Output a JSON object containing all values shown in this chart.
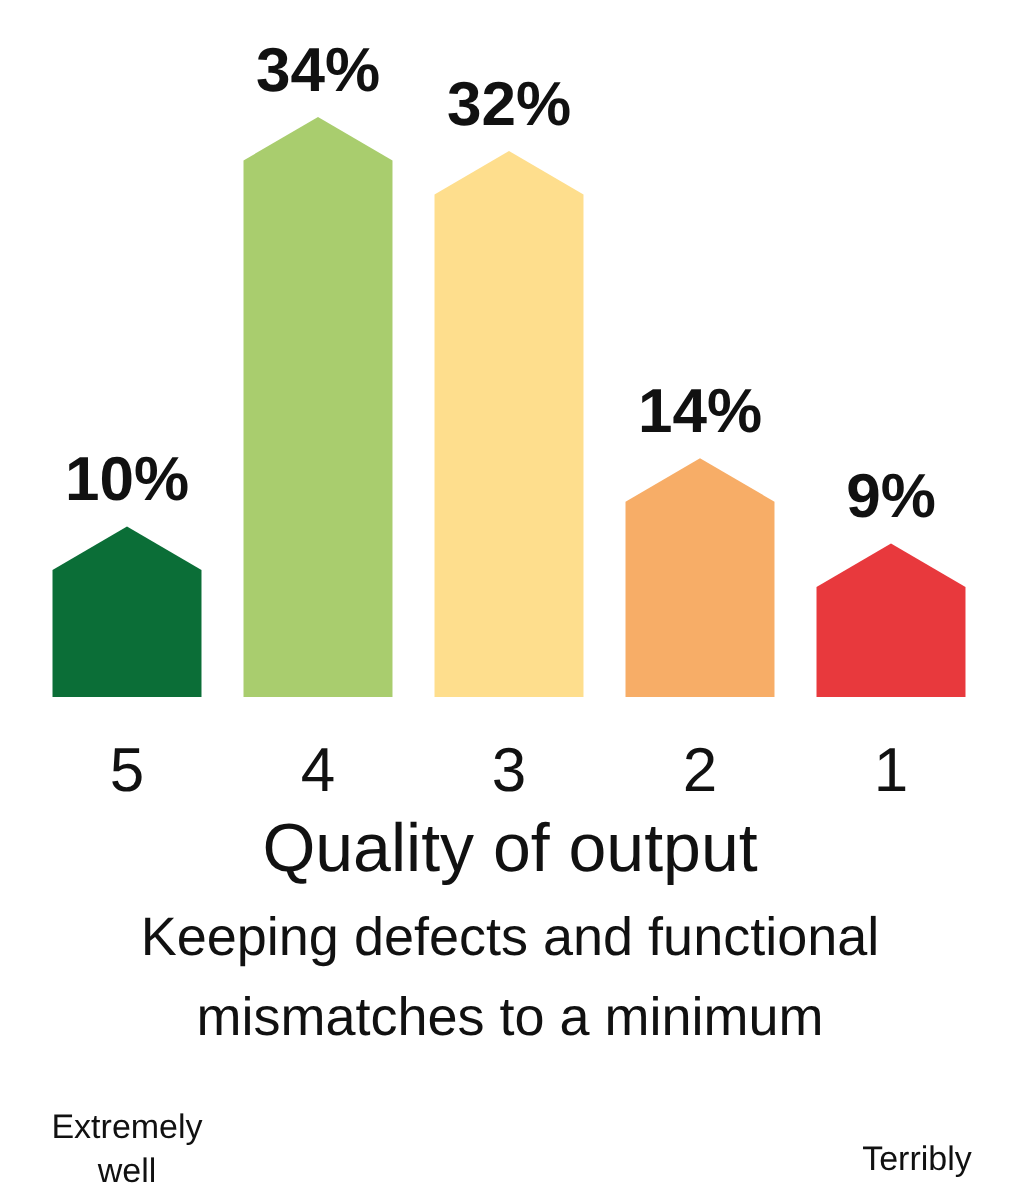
{
  "chart_data": {
    "type": "bar",
    "title": "Quality of output",
    "subtitle": "Keeping defects and functional mismatches to a minimum",
    "categories": [
      "5",
      "4",
      "3",
      "2",
      "1"
    ],
    "values": [
      10,
      34,
      32,
      14,
      9
    ],
    "colors": [
      "#0b6e37",
      "#a9cd6e",
      "#fede8d",
      "#f7ad67",
      "#e8393d"
    ],
    "data_labels": true,
    "value_labels": [
      "10%",
      "34%",
      "32%",
      "14%",
      "9%"
    ],
    "annotations": [
      "Extremely well",
      "Terribly"
    ]
  }
}
